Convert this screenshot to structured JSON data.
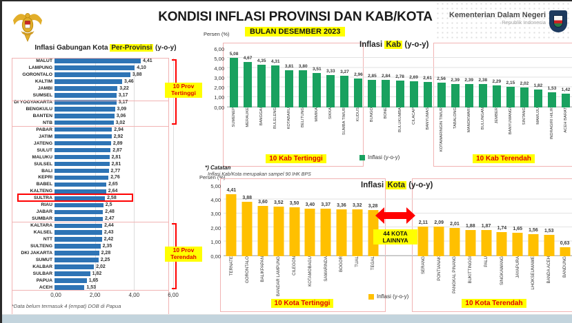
{
  "page": {
    "header": {
      "title": "KONDISI INFLASI PROVINSI DAN KAB/KOTA",
      "period_badge": "BULAN DESEMBER 2023",
      "ministry_name": "Kementerian Dalam Negeri",
      "ministry_subtitle": "Republik Indonesia"
    },
    "note": {
      "heading": "*) Catatan",
      "body": "Inflasi Kab/Kota merupakan sampel 90 IHK BPS"
    }
  },
  "colors": {
    "prov_bar": "#2E74B5",
    "kab_bar": "#19A15F",
    "kota_bar": "#FFC000",
    "highlight_yellow": "#FFFF00",
    "accent_red": "#FF0000",
    "box_pink": "#F1B3B3"
  },
  "chart_data": [
    {
      "id": "prov",
      "type": "bar",
      "orientation": "horizontal",
      "title_prefix": "Inflasi Gabungan Kota ",
      "title_highlight": "Per-Provinsi",
      "title_suffix": " (y-o-y)",
      "categories": [
        "MALUT",
        "LAMPUNG",
        "GORONTALO",
        "KALTIM",
        "JAMBI",
        "SUMSEL",
        "DI YOGYAKARTA",
        "BENGKULU",
        "BANTEN",
        "NTB",
        "PABAR",
        "JATIM",
        "JATENG",
        "SULUT",
        "MALUKU",
        "SULSEL",
        "BALI",
        "KEPRI",
        "BABEL",
        "KALTENG",
        "SULTRA",
        "RIAU",
        "JABAR",
        "SUMBAR",
        "KALTARA",
        "KALSEL",
        "NTT",
        "SULTENG",
        "DKI JAKARTA",
        "SUMUT",
        "KALBAR",
        "SULBAR",
        "PAPUA",
        "ACEH"
      ],
      "value_labels": [
        "4,41",
        "4,10",
        "3,88",
        "3,46",
        "3,22",
        "3,17",
        "3,17",
        "3,09",
        "3,06",
        "3,02",
        "2,94",
        "2,92",
        "2,89",
        "2,87",
        "2,81",
        "2,81",
        "2,77",
        "2,76",
        "2,65",
        "2,64",
        "2,58",
        "2,5",
        "2,48",
        "2,47",
        "2,44",
        "2,43",
        "2,42",
        "2,35",
        "2,28",
        "2,25",
        "2,02",
        "1,82",
        "1,65",
        "1,53"
      ],
      "xlim": [
        0,
        6
      ],
      "xticks": [
        "0,00",
        "2,00",
        "4,00",
        "6,00"
      ],
      "highlight_category": "SULTRA",
      "top_group": {
        "count": 10,
        "label_lines": [
          "10 Prov",
          "Tertinggi"
        ]
      },
      "bottom_group": {
        "count": 10,
        "label_lines": [
          "10 Prov",
          "Terendah"
        ]
      },
      "footnote": "*Data belum termasuk 4 (empat) DOB di Papua"
    },
    {
      "id": "kab",
      "type": "bar",
      "orientation": "vertical",
      "axis_unit_label": "Persen (%)",
      "title_prefix": "Inflasi ",
      "title_highlight": "Kab",
      "title_suffix": " (y-o-y)",
      "ylim": [
        0,
        6
      ],
      "yticks": [
        "6,00",
        "5,00",
        "4,00",
        "3,00",
        "2,00",
        "1,00",
        "0,00"
      ],
      "legend": "Inflasi (y-o-y)",
      "groups": [
        {
          "caption": "10 Kab Tertinggi",
          "boxed": true,
          "categories": [
            "SUMENEP",
            "MERAUKE",
            "BANGGAI",
            "BULELENG",
            "KOTABARU",
            "BELITUNG",
            "MIMIKA",
            "SIKKA",
            "SUMBA TIMUR",
            "KUDUS"
          ],
          "value_labels": [
            "5,08",
            "4,67",
            "4,35",
            "4,31",
            "3,81",
            "3,80",
            "3,51",
            "3,33",
            "3,27",
            "2,96"
          ]
        },
        {
          "caption": "",
          "boxed": false,
          "categories": [
            "BUNGO",
            "BONE",
            "BULUKUMBA",
            "CILACAP",
            "BANYUMAS"
          ],
          "value_labels": [
            "2,85",
            "2,84",
            "2,78",
            "2,69",
            "2,61"
          ]
        },
        {
          "caption": "10 Kab Terendah",
          "boxed": true,
          "categories": [
            "KOTAWARINGIN TIMUR",
            "TABALONG",
            "MANOKWARI",
            "BULUNGAN",
            "JEMBER",
            "BANYUWANGI",
            "SINTANG",
            "MAMUJU",
            "INDRAGIRI HILIR",
            "ACEH BARAT"
          ],
          "value_labels": [
            "2,56",
            "2,39",
            "2,39",
            "2,38",
            "2,29",
            "2,15",
            "2,02",
            "1,82",
            "1,53",
            "1,42"
          ]
        }
      ]
    },
    {
      "id": "kota",
      "type": "bar",
      "orientation": "vertical",
      "axis_unit_label": "Persen (%)",
      "title_prefix": "Inflasi ",
      "title_highlight": "Kota",
      "title_suffix": " (y-o-y)",
      "ylim": [
        0,
        5
      ],
      "yticks": [
        "5,00",
        "4,00",
        "3,00",
        "2,00",
        "1,00",
        "0,00"
      ],
      "legend": "Inflasi (y-o-y)",
      "gap_annotation": {
        "label_lines": [
          "44 KOTA",
          "LAINNYA"
        ],
        "arrow": "red-double-arrow"
      },
      "groups": [
        {
          "caption": "10 Kota Tertinggi",
          "boxed": true,
          "categories": [
            "TERNATE",
            "GORONTALO",
            "BALIKPAPAN",
            "BANDAR LAMPUNG",
            "CILEGON",
            "KOTAMOBAGU",
            "SAMARINDA",
            "BOGOR",
            "TUAL",
            "TEGAL"
          ],
          "value_labels": [
            "4,41",
            "3,88",
            "3,60",
            "3,52",
            "3,50",
            "3,40",
            "3,37",
            "3,36",
            "3,32",
            "3,28"
          ]
        },
        {
          "caption": "10 Kota Terendah",
          "boxed": true,
          "categories": [
            "SERANG",
            "PONTIANAK",
            "PANGKAL PINANG",
            "BUKITTINGGI",
            "PALU",
            "SINGKAWANG",
            "JAYAPURA",
            "LHOKSEUMAWE",
            "BANDA ACEH",
            "BANDUNG"
          ],
          "value_labels": [
            "2,11",
            "2,09",
            "2,01",
            "1,88",
            "1,87",
            "1,74",
            "1,65",
            "1,56",
            "1,53",
            "0,63"
          ]
        }
      ]
    }
  ]
}
